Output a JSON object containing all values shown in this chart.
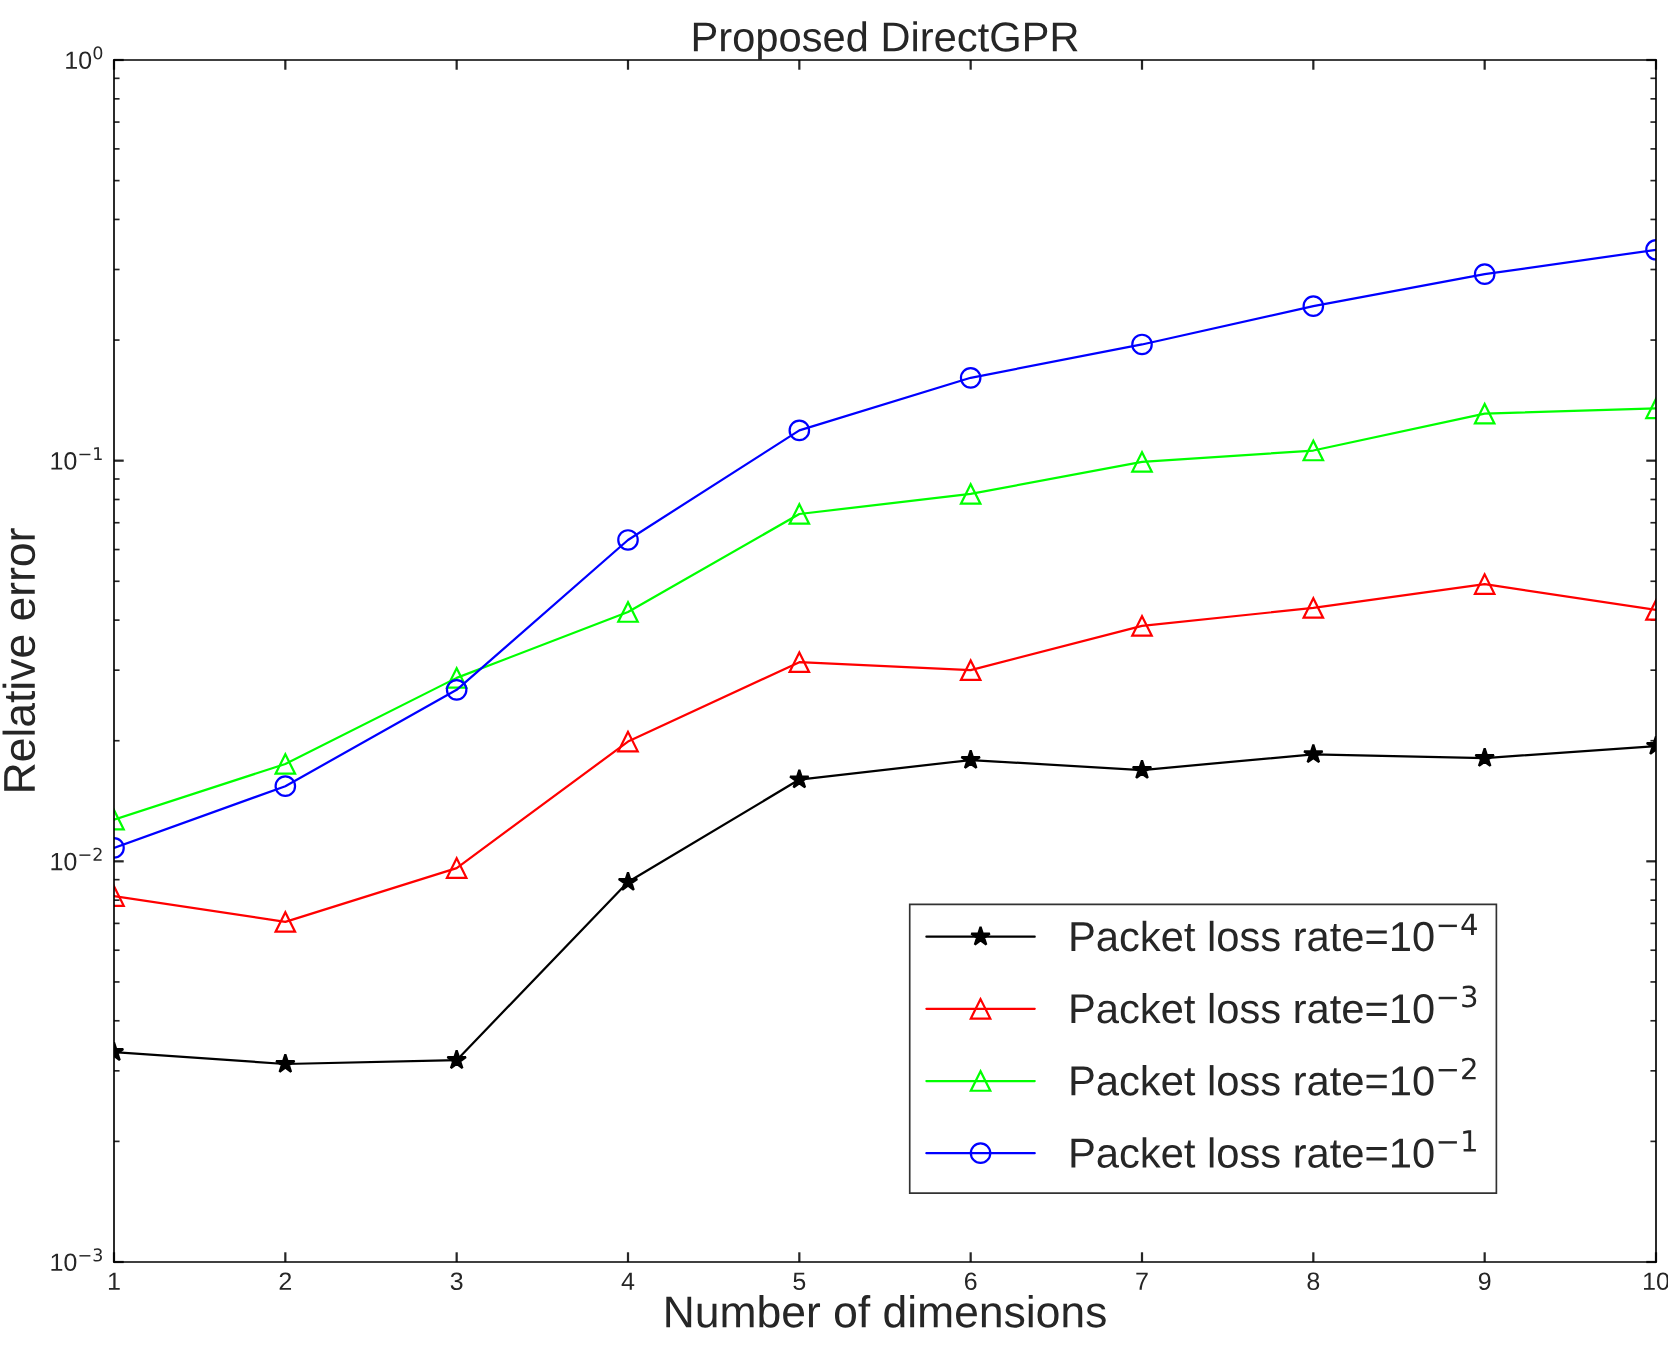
{
  "chart_data": {
    "type": "line",
    "title": "Proposed DirectGPR",
    "xlabel": "Number of dimensions",
    "ylabel": "Relative error",
    "x": [
      1,
      2,
      3,
      4,
      5,
      6,
      7,
      8,
      9,
      10
    ],
    "series": [
      {
        "name": "Packet loss rate=10$^{−4}$",
        "color": "#000000",
        "marker": "star",
        "values": [
          0.00334,
          0.00312,
          0.00319,
          0.00888,
          0.016,
          0.0179,
          0.0169,
          0.0185,
          0.0181,
          0.0194
        ]
      },
      {
        "name": "Packet loss rate=10$^{−3}$",
        "color": "#ff0000",
        "marker": "triangle",
        "values": [
          0.00819,
          0.00706,
          0.00962,
          0.0199,
          0.0314,
          0.03,
          0.0387,
          0.0429,
          0.0492,
          0.0424
        ]
      },
      {
        "name": "Packet loss rate=10$^{−2}$",
        "color": "#00ff00",
        "marker": "triangle",
        "values": [
          0.0127,
          0.0175,
          0.0287,
          0.0419,
          0.0736,
          0.0826,
          0.0993,
          0.106,
          0.131,
          0.135
        ]
      },
      {
        "name": "Packet loss rate=10$^{−1}$",
        "color": "#0000ff",
        "marker": "circle",
        "values": [
          0.0108,
          0.0154,
          0.0268,
          0.0634,
          0.119,
          0.161,
          0.195,
          0.243,
          0.292,
          0.336
        ]
      }
    ],
    "log": "y",
    "xlim": [
      1,
      10
    ],
    "xticks": [
      1,
      2,
      3,
      4,
      5,
      6,
      7,
      8,
      9,
      10
    ],
    "ylim": [
      0.001,
      1
    ],
    "yticks": [
      {
        "value": 0.001,
        "label": "10$^{−3}$"
      },
      {
        "value": 0.01,
        "label": "10$^{−2}$"
      },
      {
        "value": 0.1,
        "label": "10$^{−1}$"
      },
      {
        "value": 1,
        "label": "10$^{0}$"
      }
    ],
    "grid": false,
    "legend": "bottom right",
    "line_style": "solid"
  }
}
